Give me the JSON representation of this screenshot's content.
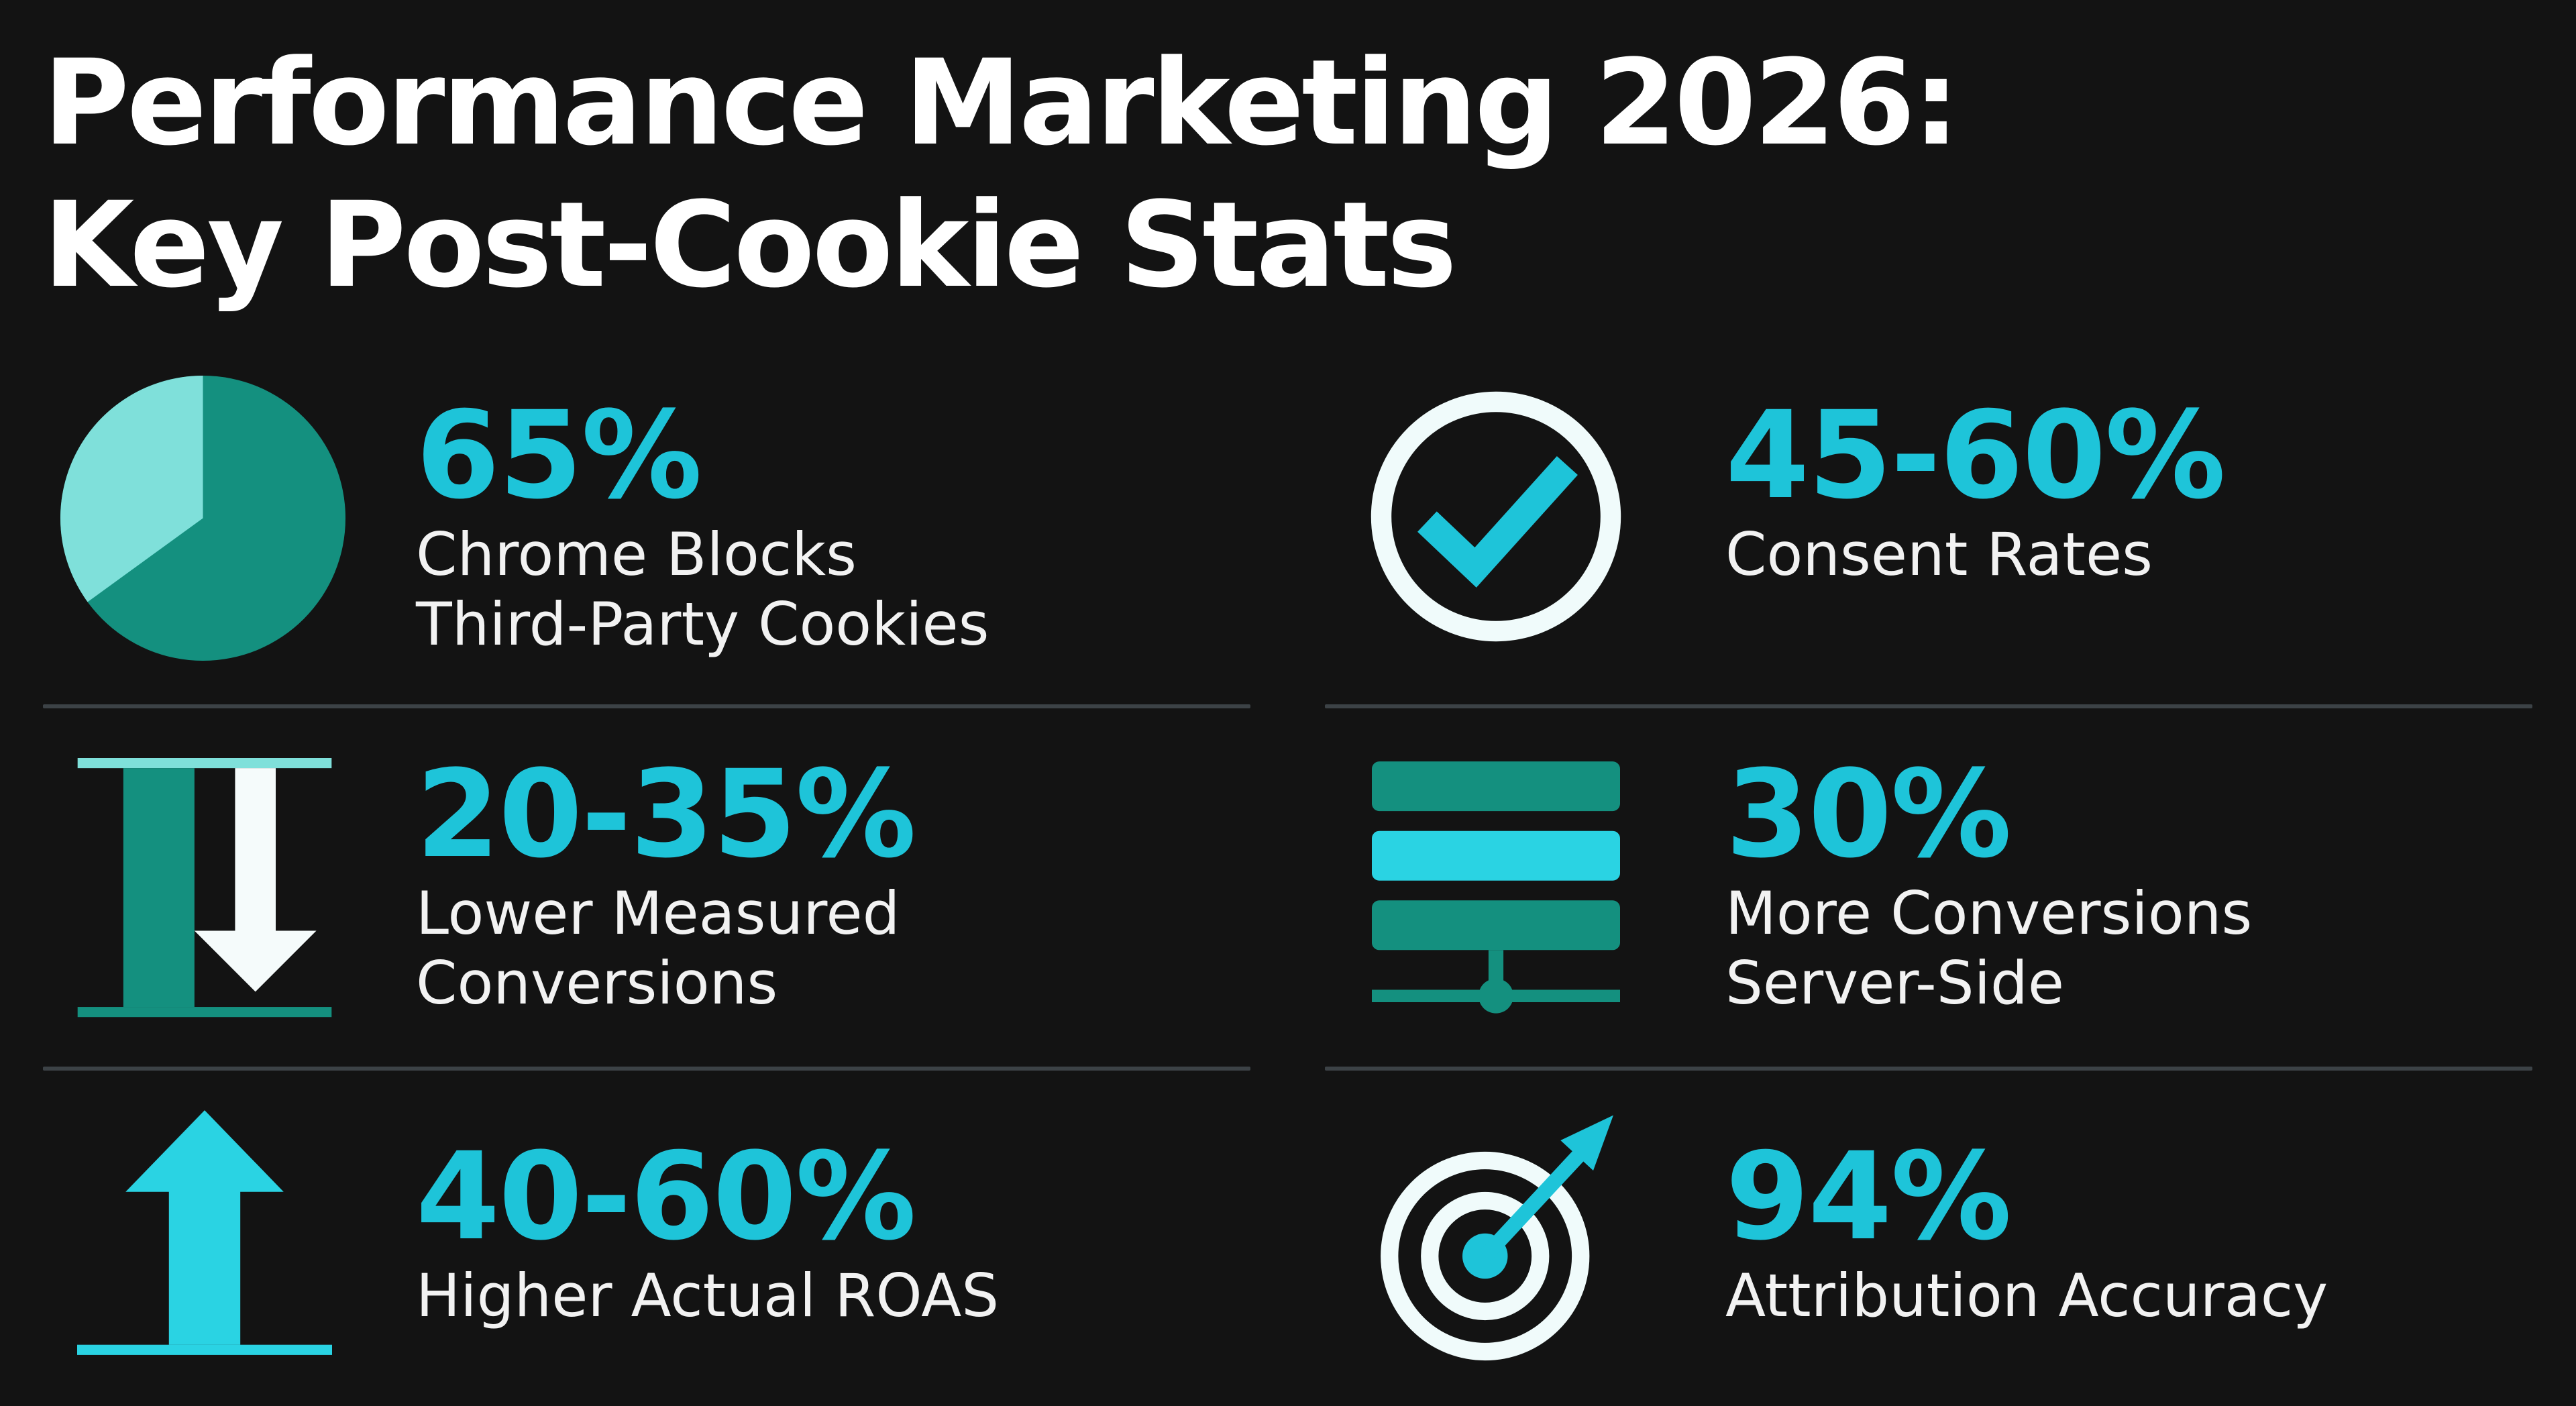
{
  "title": {
    "line1": "Performance Marketing 2026:",
    "line2": "Key Post-Cookie Stats"
  },
  "colors": {
    "background": "#131313",
    "accent_cyan": "#1ec4d9",
    "accent_teal": "#14907f",
    "accent_light": "#7fe0da",
    "divider": "#3c4246",
    "text": "#f2f2f2"
  },
  "stats": [
    {
      "value": "65%",
      "label_line1": "Chrome Blocks",
      "label_line2": "Third-Party Cookies",
      "icon": "pie-chart-icon",
      "pie_fraction": 0.65
    },
    {
      "value": "45-60%",
      "label_line1": "Consent Rates",
      "label_line2": "",
      "icon": "check-circle-icon"
    },
    {
      "value": "20-35%",
      "label_line1": "Lower Measured",
      "label_line2": "Conversions",
      "icon": "down-arrow-icon"
    },
    {
      "value": "30%",
      "label_line1": "More Conversions",
      "label_line2": "Server-Side",
      "icon": "server-icon"
    },
    {
      "value": "40-60%",
      "label_line1": "Higher Actual ROAS",
      "label_line2": "",
      "icon": "up-arrow-icon"
    },
    {
      "value": "94%",
      "label_line1": "Attribution Accuracy",
      "label_line2": "",
      "icon": "target-icon"
    }
  ]
}
